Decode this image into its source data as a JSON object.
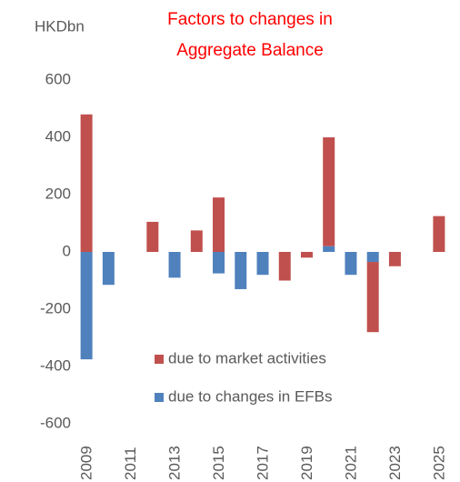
{
  "chart_data": {
    "type": "bar",
    "stacked": true,
    "title": [
      "Factors to changes in",
      "Aggregate Balance"
    ],
    "y_label": "HKDbn",
    "categories": [
      "2009",
      null,
      "2011",
      null,
      "2013",
      null,
      "2015",
      null,
      "2017",
      null,
      "2019",
      null,
      "2021",
      null,
      "2023",
      null,
      "2025"
    ],
    "series": [
      {
        "name": "due to changes in EFBs",
        "color": "#4f81bd",
        "values": [
          -375,
          -115,
          0,
          0,
          -90,
          0,
          -75,
          -130,
          -80,
          0,
          0,
          20,
          -80,
          -35,
          0,
          0,
          0
        ]
      },
      {
        "name": "due to market activities",
        "color": "#c0504d",
        "values": [
          480,
          0,
          0,
          105,
          0,
          75,
          190,
          0,
          0,
          -100,
          -20,
          380,
          0,
          -245,
          -50,
          0,
          125
        ]
      }
    ],
    "ylim": [
      -600,
      600
    ],
    "yticks": [
      -600,
      -400,
      -200,
      0,
      200,
      400,
      600
    ],
    "grid": false,
    "legend": "inside-bottom"
  }
}
